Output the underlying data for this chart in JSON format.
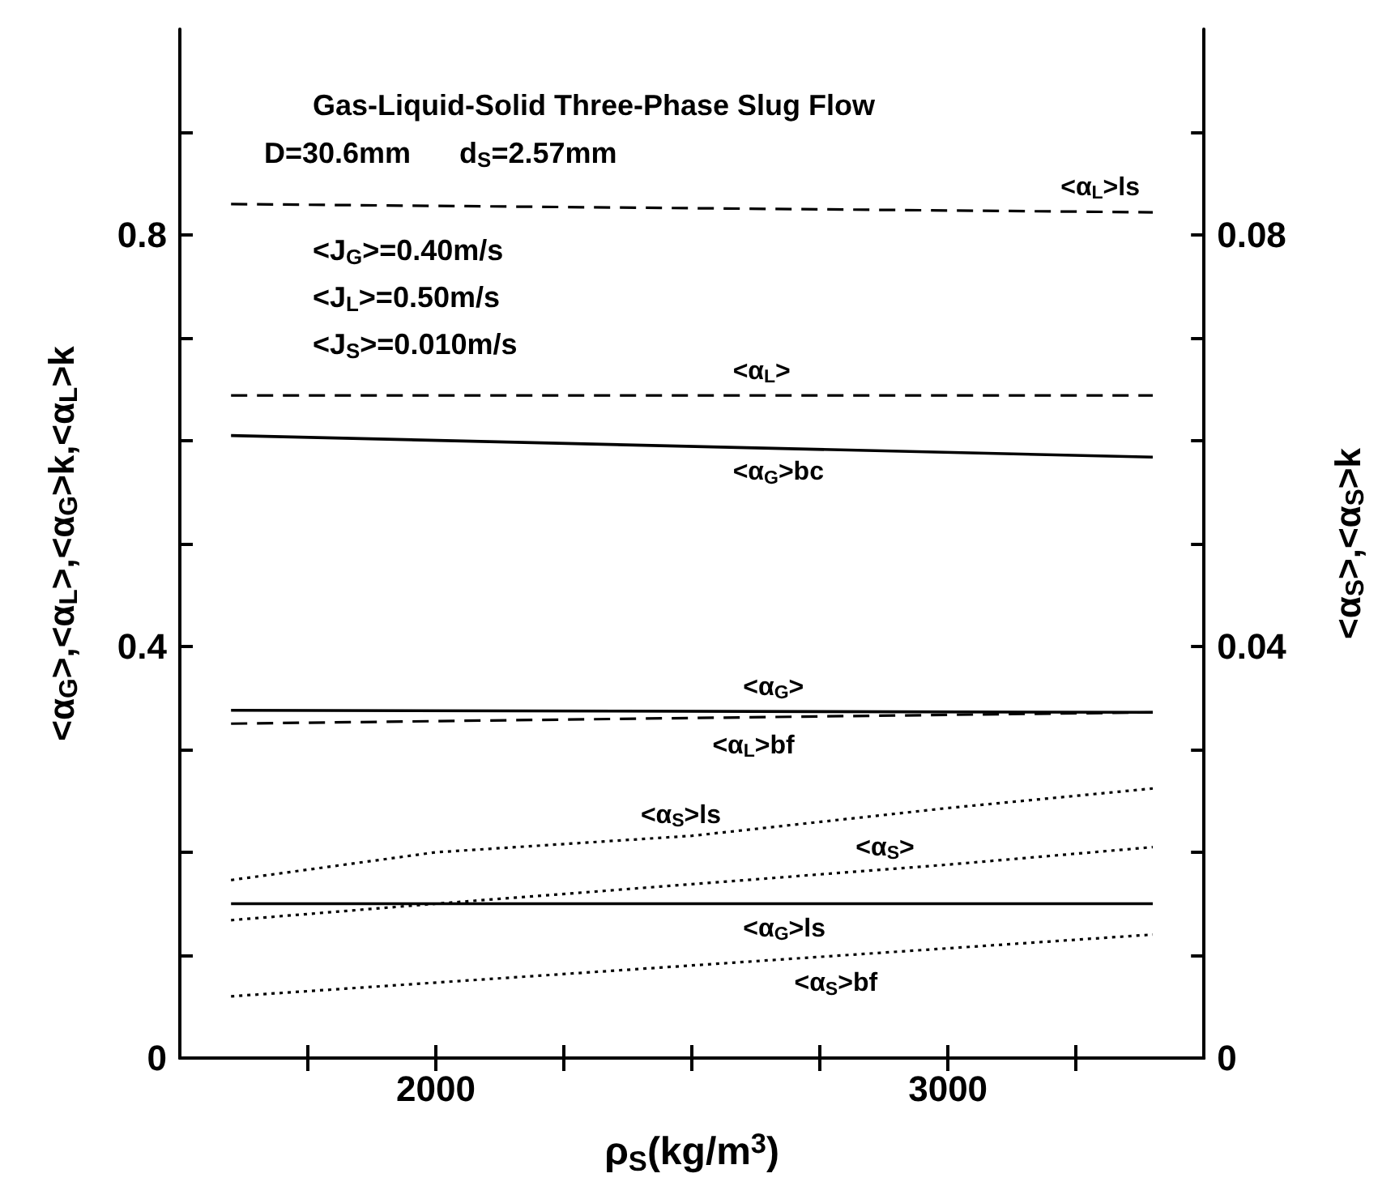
{
  "chart_data": {
    "type": "line",
    "title": "Gas-Liquid-Solid Three-Phase Slug Flow",
    "subtitle": "D=30.6mm      d$_{S}$=2.57mm",
    "annotations": [
      "<J$_{G}$>=0.40m/s",
      "<J$_{L}$>=0.50m/s",
      "<J$_{S}$>=0.010m/s"
    ],
    "xlabel": "ρ$_{S}$(kg/m$^{3}$)",
    "ylabel": "<α$_{G}$>,<α$_{L}$>,<α$_{G}$>k,<α$_{L}$>k",
    "y2label": "<α$_{S}$>,<α$_{S}$>k",
    "x": [
      1600,
      3400
    ],
    "xlim": [
      1500,
      3500
    ],
    "xticks": [
      {
        "value": 1750,
        "label": null
      },
      2000,
      {
        "value": 2250,
        "label": null
      },
      {
        "value": 2500,
        "label": null
      },
      {
        "value": 2750,
        "label": null
      },
      3000,
      {
        "value": 3250,
        "label": null
      }
    ],
    "ylim": [
      0,
      1
    ],
    "yticks": [
      0,
      {
        "value": 0.1,
        "label": null
      },
      {
        "value": 0.2,
        "label": null
      },
      {
        "value": 0.3,
        "label": null
      },
      0.4,
      {
        "value": 0.5,
        "label": null
      },
      {
        "value": 0.6,
        "label": null
      },
      {
        "value": 0.7,
        "label": null
      },
      0.8,
      {
        "value": 0.9,
        "label": null
      }
    ],
    "y2lim": [
      0,
      0.1
    ],
    "y2ticks": [
      0,
      {
        "value": 0.01,
        "label": null
      },
      {
        "value": 0.02,
        "label": null
      },
      {
        "value": 0.03,
        "label": null
      },
      0.04,
      {
        "value": 0.05,
        "label": null
      },
      {
        "value": 0.06,
        "label": null
      },
      {
        "value": 0.07,
        "label": null
      },
      0.08,
      {
        "value": 0.09,
        "label": null
      }
    ],
    "grid": false,
    "marker": "none",
    "series": [
      {
        "name": "<α$_{L}$>ls",
        "color": "#000000",
        "line_style": "dashed",
        "values": [
          0.83,
          0.822
        ]
      },
      {
        "name": "<α$_{L}$>",
        "color": "#000000",
        "line_style": "dashed",
        "values": [
          0.644,
          0.644
        ]
      },
      {
        "name": "<α$_{G}$>bc",
        "color": "#000000",
        "line_style": "solid",
        "values": [
          0.605,
          0.584
        ]
      },
      {
        "name": "<α$_{G}$>",
        "color": "#000000",
        "line_style": "solid",
        "values": [
          0.338,
          0.336
        ]
      },
      {
        "name": "<α$_{L}$>bf",
        "color": "#000000",
        "line_style": "dashed",
        "values": [
          0.325,
          0.336
        ]
      },
      {
        "name": "<α$_{S}$>ls",
        "color": "#000000",
        "line_style": "dotted",
        "axis": "y2",
        "x": [
          1600,
          2000,
          2500,
          3000,
          3400
        ],
        "values": [
          0.0173,
          0.02,
          0.0216,
          0.0243,
          0.0262
        ]
      },
      {
        "name": "<α$_{S}$>",
        "color": "#000000",
        "line_style": "dotted",
        "axis": "y2",
        "x": [
          1600,
          2000,
          2500,
          3000,
          3400
        ],
        "values": [
          0.0134,
          0.015,
          0.0169,
          0.0188,
          0.0205
        ]
      },
      {
        "name": "<α$_{G}$>ls",
        "color": "#000000",
        "line_style": "solid",
        "values": [
          0.15,
          0.15
        ]
      },
      {
        "name": "<α$_{S}$>bf",
        "color": "#000000",
        "line_style": "dotted",
        "axis": "y2",
        "x": [
          1600,
          3400
        ],
        "values": [
          0.006,
          0.012
        ]
      }
    ]
  }
}
